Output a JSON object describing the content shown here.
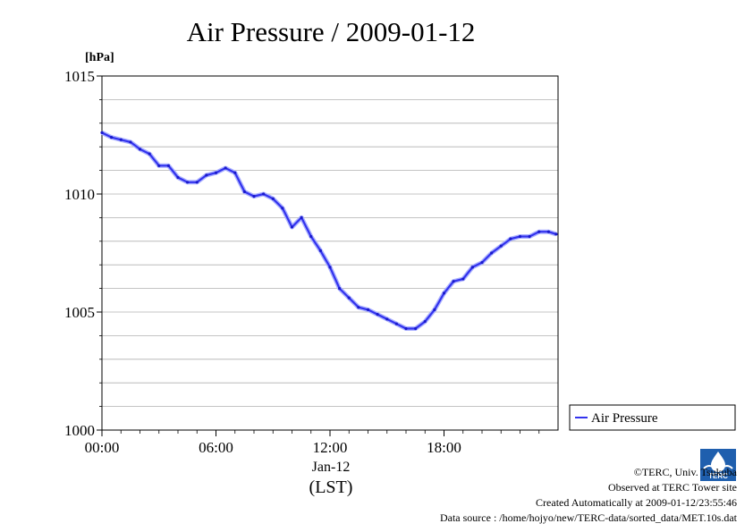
{
  "chart_data": {
    "type": "line",
    "title": "Air Pressure / 2009-01-12",
    "ylabel": "[hPa]",
    "xlabel": "(LST)",
    "date_label": "Jan-12",
    "xlim_hours": [
      0,
      24
    ],
    "ylim": [
      1000,
      1015
    ],
    "x_ticks": [
      {
        "hour": 0,
        "label": "00:00"
      },
      {
        "hour": 6,
        "label": "06:00"
      },
      {
        "hour": 12,
        "label": "12:00"
      },
      {
        "hour": 18,
        "label": "18:00"
      }
    ],
    "y_ticks": [
      {
        "value": 1000,
        "label": "1000"
      },
      {
        "value": 1005,
        "label": "1005"
      },
      {
        "value": 1010,
        "label": "1010"
      },
      {
        "value": 1015,
        "label": "1015"
      }
    ],
    "grid": true,
    "legend": {
      "placement": "right-bottom",
      "entries": [
        "Air Pressure"
      ]
    },
    "series": [
      {
        "name": "Air Pressure",
        "color": "#3333ee",
        "x": [
          0.0,
          0.5,
          1.0,
          1.5,
          2.0,
          2.5,
          3.0,
          3.5,
          4.0,
          4.5,
          5.0,
          5.5,
          6.0,
          6.5,
          7.0,
          7.5,
          8.0,
          8.5,
          9.0,
          9.5,
          10.0,
          10.5,
          11.0,
          11.5,
          12.0,
          12.5,
          13.0,
          13.5,
          14.0,
          14.5,
          15.0,
          15.5,
          16.0,
          16.5,
          17.0,
          17.5,
          18.0,
          18.5,
          19.0,
          19.5,
          20.0,
          20.5,
          21.0,
          21.5,
          22.0,
          22.5,
          23.0,
          23.5,
          23.9
        ],
        "values": [
          1012.6,
          1012.4,
          1012.3,
          1012.2,
          1011.9,
          1011.7,
          1011.2,
          1011.2,
          1010.7,
          1010.5,
          1010.5,
          1010.8,
          1010.9,
          1011.1,
          1010.9,
          1010.1,
          1009.9,
          1010.0,
          1009.8,
          1009.4,
          1008.6,
          1009.0,
          1008.2,
          1007.6,
          1006.9,
          1006.0,
          1005.6,
          1005.2,
          1005.1,
          1004.9,
          1004.7,
          1004.5,
          1004.3,
          1004.3,
          1004.6,
          1005.1,
          1005.8,
          1006.3,
          1006.4,
          1006.9,
          1007.1,
          1007.5,
          1007.8,
          1008.1,
          1008.2,
          1008.2,
          1008.4,
          1008.4,
          1008.3
        ]
      }
    ]
  },
  "footer": {
    "copyright": "©TERC, Univ. Tsukuba",
    "observed": "Observed at TERC Tower site",
    "created": "Created Automatically at 2009-01-12/23:55:46",
    "source": "Data source : /home/hojyo/new/TERC-data/sorted_data/MET.10s.dat",
    "logo_text": "TERC"
  }
}
